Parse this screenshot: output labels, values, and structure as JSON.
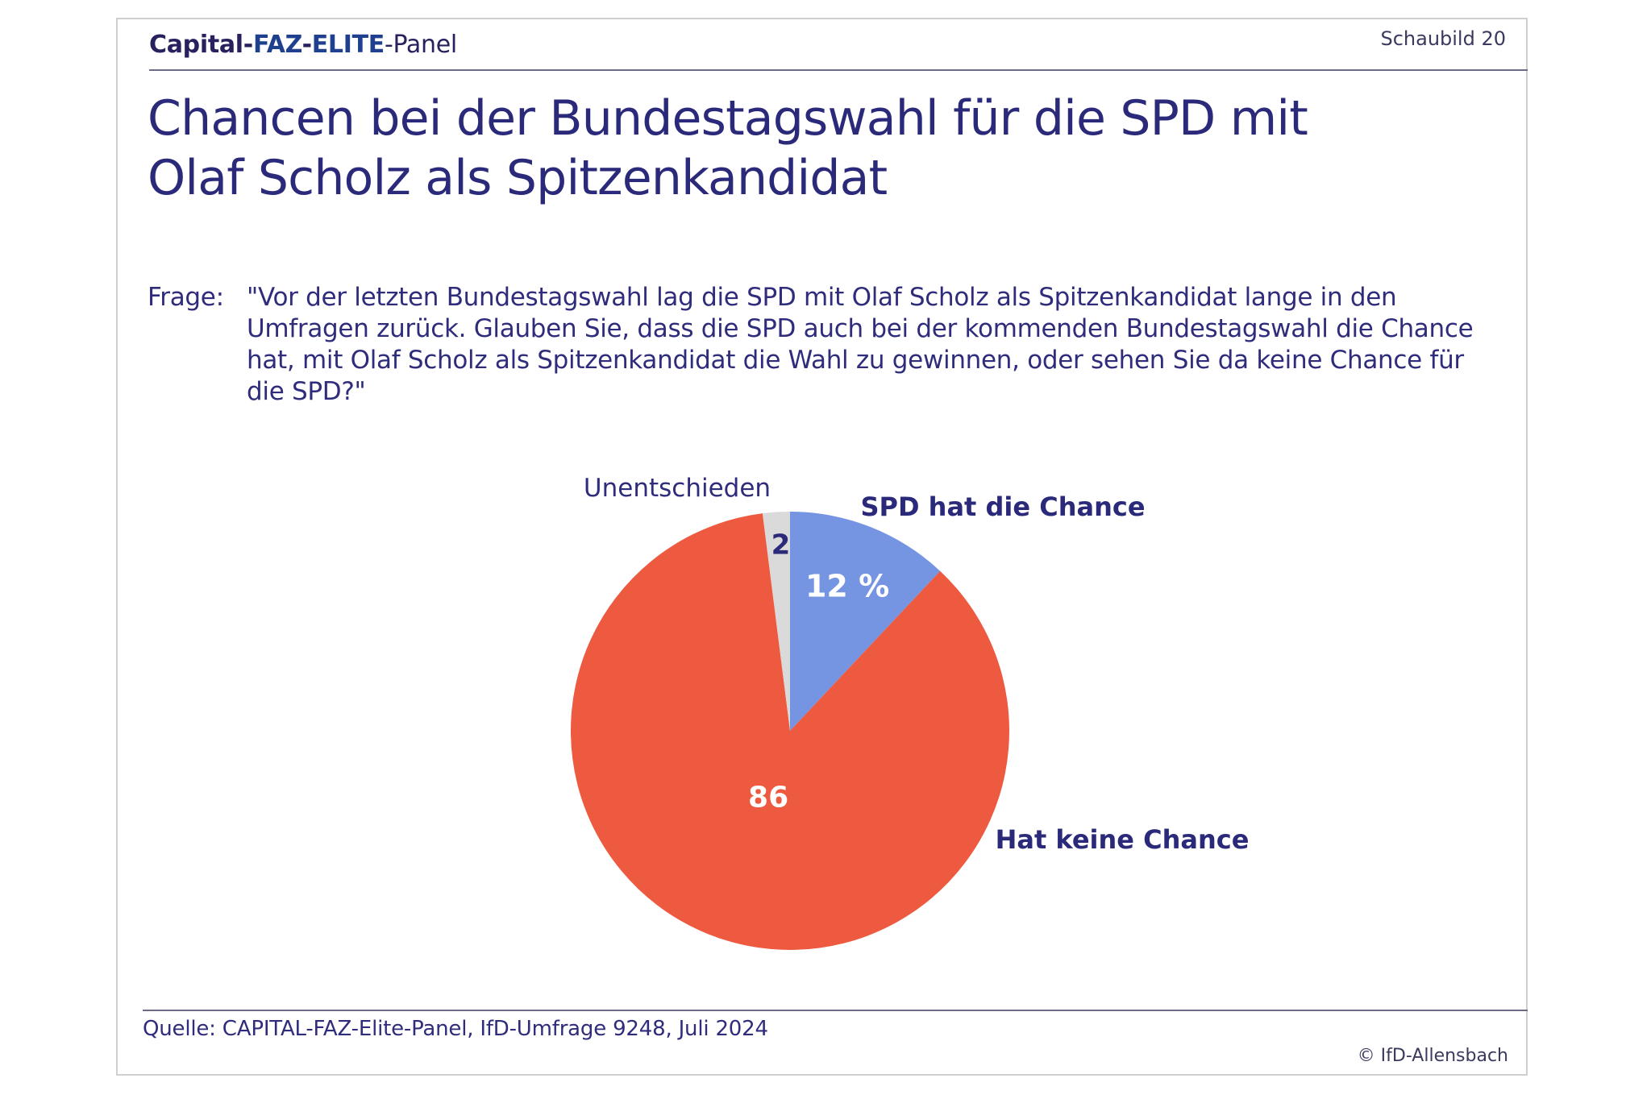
{
  "header": {
    "brand_part1": "Capital-",
    "brand_part2": "FAZ",
    "brand_part3": "-",
    "brand_part4": "ELITE",
    "brand_part5": "-Panel",
    "slide_label": "Schaubild 20"
  },
  "title_line1": "Chancen bei der Bundestagswahl für die SPD mit",
  "title_line2": "Olaf Scholz als Spitzenkandidat",
  "question": {
    "label": "Frage:",
    "text": "\"Vor der letzten Bundestagswahl lag die SPD mit Olaf Scholz als Spitzenkandidat lange in den Umfragen zurück. Glauben Sie, dass die SPD auch bei der kommenden Bundestagswahl die Chance hat, mit Olaf Scholz als Spitzenkandidat die Wahl zu gewinnen, oder sehen Sie da keine Chance für die SPD?\""
  },
  "chart_data": {
    "type": "pie",
    "unit": "%",
    "slices": [
      {
        "label": "SPD hat die Chance",
        "value": 12,
        "value_label": "12 %",
        "color": "#7595e3",
        "label_color": "#ffffff"
      },
      {
        "label": "Hat keine Chance",
        "value": 86,
        "value_label": "86",
        "color": "#ee5a3f",
        "label_color": "#ffffff"
      },
      {
        "label": "Unentschieden",
        "value": 2,
        "value_label": "2",
        "color": "#dadada",
        "label_color": "#2b2a7a"
      }
    ]
  },
  "footer": {
    "source": "Quelle: CAPITAL-FAZ-Elite-Panel, IfD-Umfrage 9248, Juli 2024",
    "copyright": "© IfD-Allensbach"
  }
}
